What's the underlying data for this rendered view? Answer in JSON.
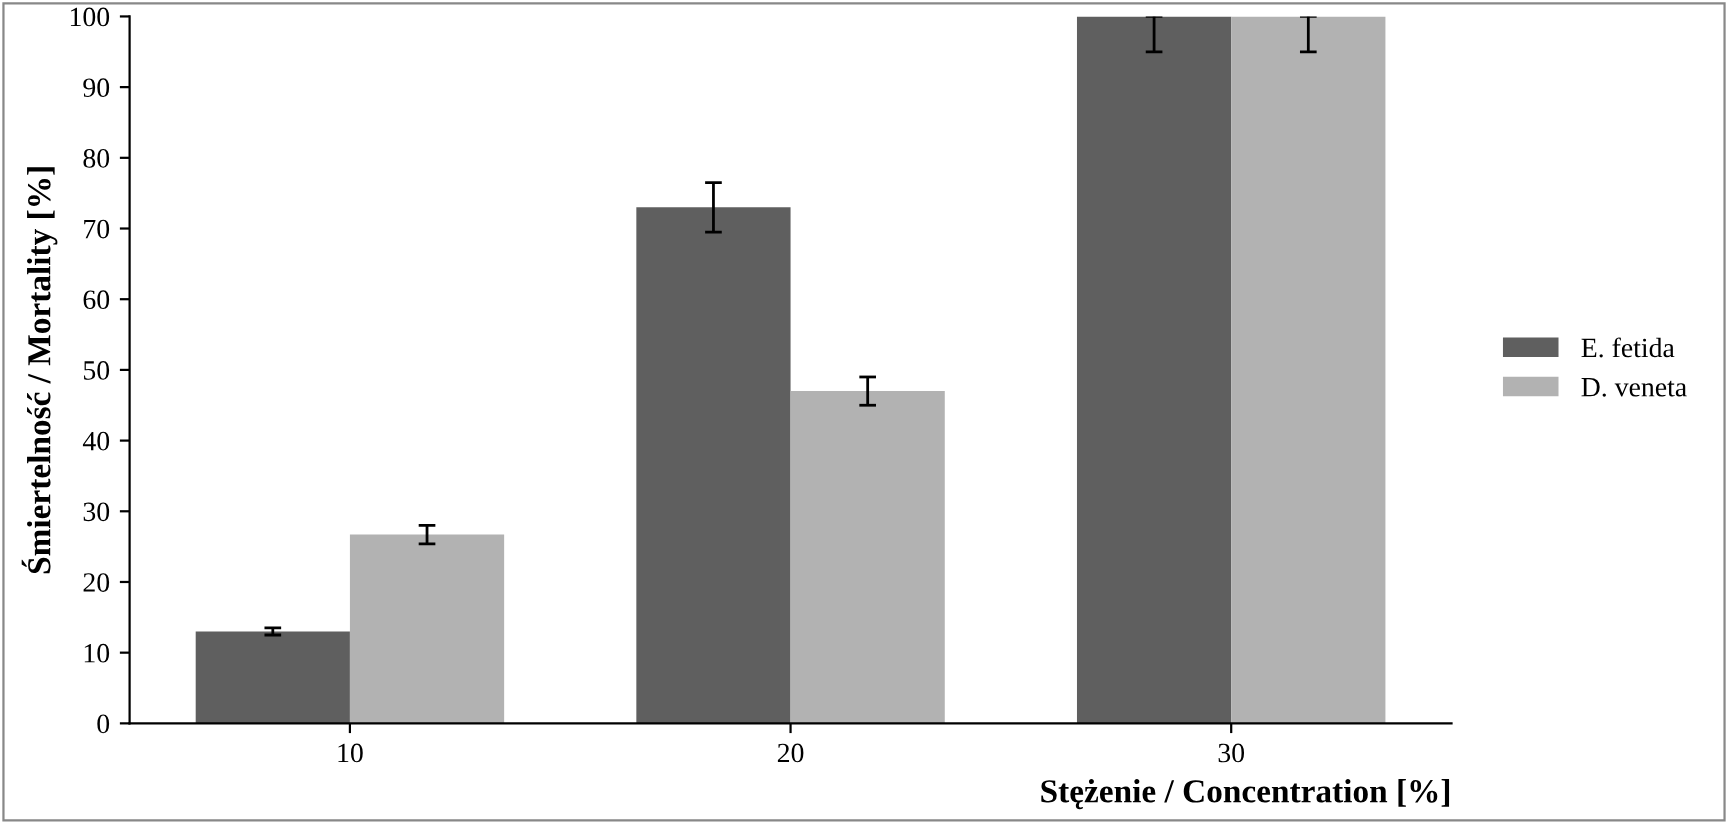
{
  "chart_data": {
    "type": "bar",
    "xlabel": "Stężenie / Concentration [%]",
    "ylabel": "Śmiertelność / Mortality [%]",
    "categories": [
      "10",
      "20",
      "30"
    ],
    "series": [
      {
        "name": "E. fetida",
        "color": "#5f5f5f",
        "values": [
          13,
          73,
          100
        ],
        "errors": [
          0.5,
          3.5,
          [
            95,
            100
          ]
        ]
      },
      {
        "name": "D. veneta",
        "color": "#b2b2b2",
        "values": [
          26.7,
          47,
          100
        ],
        "errors": [
          1.3,
          2,
          [
            95,
            100
          ]
        ]
      }
    ],
    "ylim": [
      0,
      100
    ],
    "yticks": [
      0,
      10,
      20,
      30,
      40,
      50,
      60,
      70,
      80,
      90,
      100
    ],
    "grid": false,
    "legend": "right"
  }
}
